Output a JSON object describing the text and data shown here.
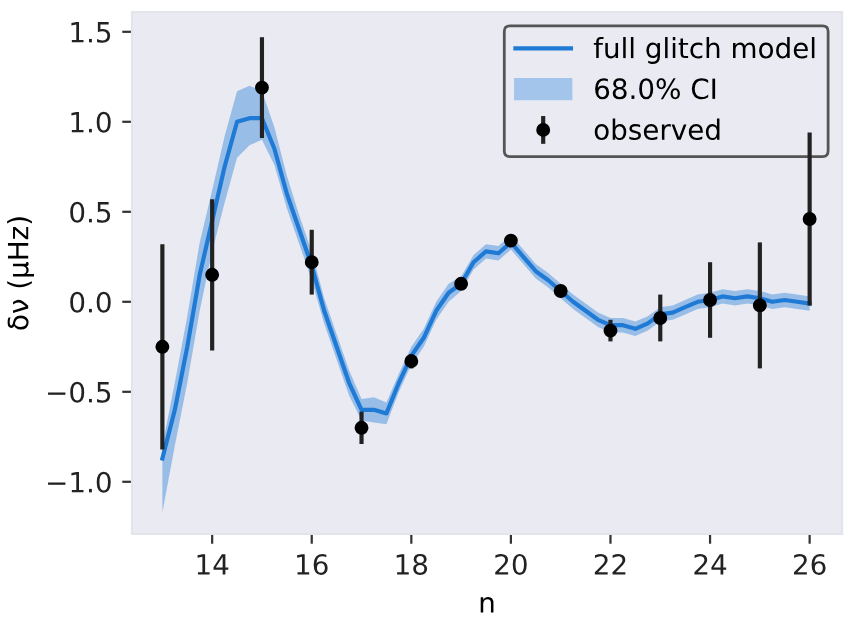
{
  "chart_data": {
    "type": "line",
    "xlabel": "n",
    "ylabel": "δν (μHz)",
    "xlim": [
      12.39,
      26.65
    ],
    "ylim": [
      -1.29,
      1.61
    ],
    "xticks": [
      14,
      16,
      18,
      20,
      22,
      24,
      26
    ],
    "yticks": [
      {
        "value": -1.0,
        "label": "−1.0"
      },
      {
        "value": -0.5,
        "label": "−0.5"
      },
      {
        "value": 0.0,
        "label": "0.0"
      },
      {
        "value": 0.5,
        "label": "0.5"
      },
      {
        "value": 1.0,
        "label": "1.0"
      },
      {
        "value": 1.5,
        "label": "1.5"
      }
    ],
    "grid": false,
    "legend": "top right",
    "series": [
      {
        "name": "full glitch model",
        "color": "#1f7ad6",
        "x": [
          13.0,
          13.25,
          13.5,
          13.75,
          14.0,
          14.25,
          14.5,
          14.75,
          15.0,
          15.25,
          15.5,
          15.75,
          16.0,
          16.25,
          16.5,
          16.75,
          17.0,
          17.25,
          17.5,
          17.75,
          18.0,
          18.25,
          18.5,
          18.75,
          19.0,
          19.25,
          19.5,
          19.75,
          20.0,
          20.25,
          20.5,
          20.75,
          21.0,
          21.25,
          21.5,
          21.75,
          22.0,
          22.25,
          22.5,
          22.75,
          23.0,
          23.25,
          23.5,
          23.75,
          24.0,
          24.25,
          24.5,
          24.75,
          25.0,
          25.25,
          25.5,
          25.75,
          26.0
        ],
        "values": [
          -0.87,
          -0.6,
          -0.25,
          0.15,
          0.45,
          0.75,
          1.0,
          1.02,
          1.02,
          0.85,
          0.6,
          0.4,
          0.2,
          -0.05,
          -0.25,
          -0.45,
          -0.6,
          -0.6,
          -0.62,
          -0.45,
          -0.3,
          -0.2,
          -0.05,
          0.05,
          0.1,
          0.22,
          0.28,
          0.27,
          0.33,
          0.25,
          0.17,
          0.12,
          0.06,
          0.0,
          -0.05,
          -0.1,
          -0.13,
          -0.13,
          -0.15,
          -0.12,
          -0.07,
          -0.06,
          -0.03,
          0.0,
          0.01,
          0.03,
          0.02,
          0.03,
          0.02,
          0.0,
          0.01,
          0.0,
          -0.01
        ],
        "lower": [
          -1.17,
          -0.8,
          -0.45,
          -0.05,
          0.28,
          0.55,
          0.8,
          0.87,
          0.9,
          0.76,
          0.52,
          0.32,
          0.12,
          -0.12,
          -0.32,
          -0.52,
          -0.66,
          -0.67,
          -0.68,
          -0.5,
          -0.35,
          -0.25,
          -0.1,
          0.0,
          0.06,
          0.18,
          0.24,
          0.23,
          0.29,
          0.21,
          0.13,
          0.08,
          0.02,
          -0.04,
          -0.09,
          -0.14,
          -0.17,
          -0.17,
          -0.19,
          -0.16,
          -0.11,
          -0.1,
          -0.07,
          -0.04,
          -0.03,
          -0.01,
          -0.02,
          -0.01,
          -0.02,
          -0.04,
          -0.03,
          -0.04,
          -0.05
        ],
        "upper": [
          -0.8,
          -0.45,
          -0.08,
          0.33,
          0.62,
          0.92,
          1.17,
          1.2,
          1.17,
          0.97,
          0.7,
          0.48,
          0.28,
          0.02,
          -0.18,
          -0.38,
          -0.54,
          -0.53,
          -0.56,
          -0.4,
          -0.25,
          -0.15,
          0.0,
          0.1,
          0.14,
          0.26,
          0.32,
          0.31,
          0.37,
          0.29,
          0.21,
          0.16,
          0.1,
          0.04,
          -0.01,
          -0.06,
          -0.09,
          -0.09,
          -0.11,
          -0.08,
          -0.03,
          -0.02,
          0.01,
          0.04,
          0.05,
          0.07,
          0.06,
          0.07,
          0.06,
          0.04,
          0.05,
          0.04,
          0.03
        ]
      },
      {
        "name": "68.0% CI",
        "type": "area",
        "color": "#a3c5ec"
      },
      {
        "name": "observed",
        "type": "scatter",
        "color": "#000000",
        "marker": "circle",
        "x": [
          13,
          14,
          15,
          16,
          17,
          18,
          19,
          20,
          21,
          22,
          23,
          24,
          25,
          26
        ],
        "values": [
          -0.25,
          0.15,
          1.19,
          0.22,
          -0.7,
          -0.33,
          0.1,
          0.34,
          0.06,
          -0.16,
          -0.09,
          0.01,
          -0.02,
          0.46
        ],
        "errors": [
          0.57,
          0.42,
          0.28,
          0.18,
          0.09,
          0.04,
          0.02,
          0.02,
          0.02,
          0.06,
          0.13,
          0.21,
          0.35,
          0.48
        ]
      }
    ]
  }
}
